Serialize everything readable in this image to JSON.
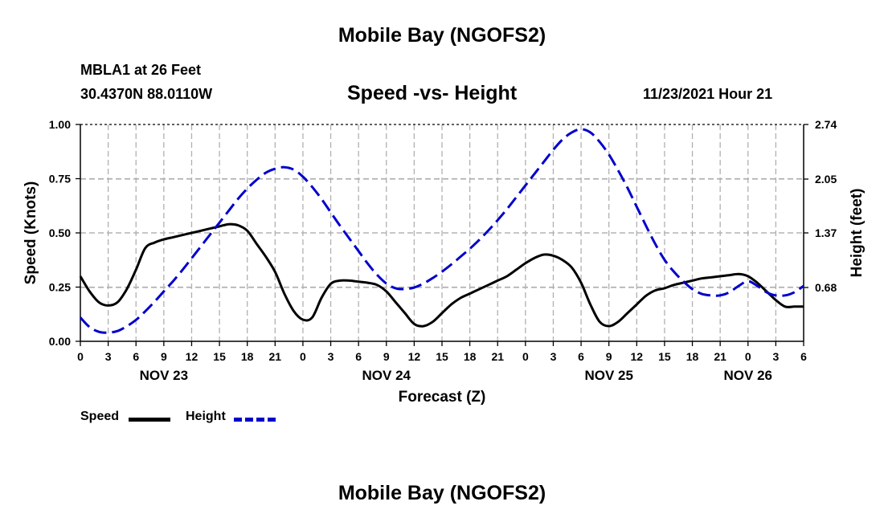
{
  "header": {
    "title": "Mobile Bay (NGOFS2)",
    "station": "MBLA1 at 26 Feet",
    "coords": "30.4370N  88.0110W",
    "subtitle": "Speed -vs- Height",
    "datetime": "11/23/2021 Hour 21",
    "footer_title": "Mobile Bay (NGOFS2)"
  },
  "legend": {
    "speed_label": "Speed",
    "height_label": "Height"
  },
  "colors": {
    "speed": "#000000",
    "height": "#0000cc",
    "grid": "#b0b0b0"
  },
  "chart_data": {
    "type": "line",
    "xlabel": "Forecast (Z)",
    "ylabel": "Speed (Knots)",
    "y2label": "Height (feet)",
    "x_hours_range": [
      0,
      78
    ],
    "x_tick_labels": [
      "0",
      "3",
      "6",
      "9",
      "12",
      "15",
      "18",
      "21",
      "0",
      "3",
      "6",
      "9",
      "12",
      "15",
      "18",
      "21",
      "0",
      "3",
      "6",
      "9",
      "12",
      "15",
      "18",
      "21",
      "0",
      "3",
      "6"
    ],
    "date_labels": [
      {
        "label": "NOV 23",
        "tick_index": 3
      },
      {
        "label": "NOV 24",
        "tick_index": 11
      },
      {
        "label": "NOV 25",
        "tick_index": 19
      },
      {
        "label": "NOV 26",
        "tick_index": 24
      }
    ],
    "ylim": [
      0,
      1.0
    ],
    "yticks": [
      "0.00",
      "0.25",
      "0.50",
      "0.75",
      "1.00"
    ],
    "y2lim": [
      0,
      2.74
    ],
    "y2ticks": [
      "0.68",
      "1.37",
      "2.05",
      "2.74"
    ],
    "series": [
      {
        "name": "Speed",
        "axis": "left",
        "style": "solid",
        "x": [
          0,
          1,
          2,
          3,
          4,
          5,
          6,
          7,
          8,
          9,
          10,
          11,
          12,
          13,
          14,
          15,
          16,
          17,
          18,
          19,
          20,
          21,
          22,
          23,
          24,
          25,
          26,
          27,
          28,
          29,
          30,
          31,
          32,
          33,
          34,
          35,
          36,
          37,
          38,
          39,
          40,
          41,
          42,
          43,
          44,
          45,
          46,
          47,
          48,
          49,
          50,
          51,
          52,
          53,
          54,
          55,
          56,
          57,
          58,
          59,
          60,
          61,
          62,
          63,
          64,
          65,
          66,
          67,
          68,
          69,
          70,
          71,
          72,
          73,
          74,
          75,
          76,
          77,
          78
        ],
        "values": [
          0.3,
          0.23,
          0.18,
          0.165,
          0.18,
          0.24,
          0.33,
          0.43,
          0.455,
          0.47,
          0.48,
          0.49,
          0.5,
          0.51,
          0.52,
          0.53,
          0.54,
          0.535,
          0.51,
          0.45,
          0.39,
          0.32,
          0.22,
          0.14,
          0.1,
          0.11,
          0.2,
          0.265,
          0.28,
          0.28,
          0.275,
          0.27,
          0.26,
          0.23,
          0.18,
          0.13,
          0.08,
          0.07,
          0.09,
          0.13,
          0.17,
          0.2,
          0.22,
          0.24,
          0.26,
          0.28,
          0.3,
          0.33,
          0.36,
          0.385,
          0.4,
          0.395,
          0.375,
          0.34,
          0.27,
          0.17,
          0.09,
          0.07,
          0.09,
          0.13,
          0.17,
          0.21,
          0.235,
          0.245,
          0.26,
          0.27,
          0.28,
          0.29,
          0.295,
          0.3,
          0.305,
          0.31,
          0.3,
          0.27,
          0.23,
          0.19,
          0.16,
          0.16,
          0.16
        ]
      },
      {
        "name": "Height",
        "axis": "right",
        "style": "dashed",
        "x": [
          0,
          1,
          2,
          3,
          4,
          5,
          6,
          7,
          8,
          9,
          10,
          11,
          12,
          13,
          14,
          15,
          16,
          17,
          18,
          19,
          20,
          21,
          22,
          23,
          24,
          25,
          26,
          27,
          28,
          29,
          30,
          31,
          32,
          33,
          34,
          35,
          36,
          37,
          38,
          39,
          40,
          41,
          42,
          43,
          44,
          45,
          46,
          47,
          48,
          49,
          50,
          51,
          52,
          53,
          54,
          55,
          56,
          57,
          58,
          59,
          60,
          61,
          62,
          63,
          64,
          65,
          66,
          67,
          68,
          69,
          70,
          71,
          72,
          73,
          74,
          75,
          76,
          77,
          78
        ],
        "values": [
          0.3,
          0.18,
          0.12,
          0.11,
          0.13,
          0.19,
          0.27,
          0.38,
          0.5,
          0.63,
          0.76,
          0.9,
          1.05,
          1.2,
          1.35,
          1.5,
          1.65,
          1.8,
          1.93,
          2.04,
          2.13,
          2.18,
          2.2,
          2.17,
          2.08,
          1.95,
          1.8,
          1.63,
          1.46,
          1.3,
          1.14,
          0.98,
          0.84,
          0.73,
          0.67,
          0.66,
          0.68,
          0.73,
          0.8,
          0.88,
          0.97,
          1.07,
          1.17,
          1.28,
          1.4,
          1.53,
          1.67,
          1.82,
          1.97,
          2.12,
          2.27,
          2.42,
          2.55,
          2.64,
          2.68,
          2.64,
          2.52,
          2.36,
          2.16,
          1.94,
          1.7,
          1.46,
          1.23,
          1.03,
          0.88,
          0.76,
          0.66,
          0.6,
          0.58,
          0.58,
          0.62,
          0.7,
          0.76,
          0.7,
          0.62,
          0.58,
          0.58,
          0.62,
          0.7
        ]
      }
    ]
  }
}
